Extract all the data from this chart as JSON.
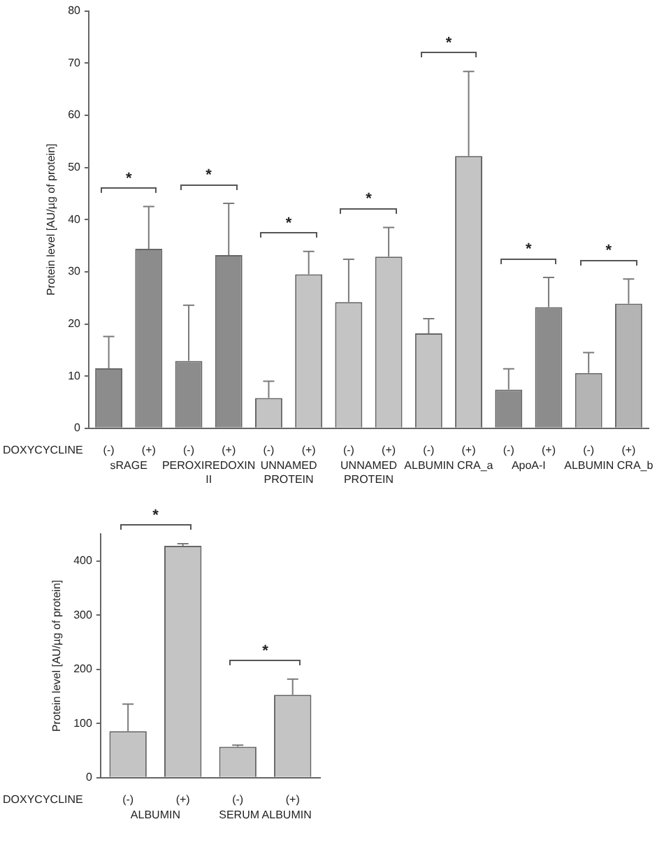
{
  "chart_data": [
    {
      "type": "bar",
      "ylabel": "Protein level [AU/µg of protein]",
      "xlabel": "DOXYCYCLINE",
      "categories": [
        "(-)",
        "(+)",
        "(-)",
        "(+)",
        "(-)",
        "(+)",
        "(-)",
        "(+)",
        "(-)",
        "(+)",
        "(-)",
        "(+)",
        "(-)",
        "(+)"
      ],
      "values": [
        11.5,
        34.4,
        12.9,
        33.2,
        5.8,
        29.5,
        24.2,
        32.9,
        18.2,
        52.2,
        7.4,
        23.2,
        10.6,
        23.9
      ],
      "colors": [
        "#8c8c8c",
        "#8c8c8c",
        "#8c8c8c",
        "#8c8c8c",
        "#c4c4c4",
        "#c4c4c4",
        "#c4c4c4",
        "#c4c4c4",
        "#c4c4c4",
        "#c4c4c4",
        "#8c8c8c",
        "#8c8c8c",
        "#b4b4b4",
        "#b4b4b4"
      ],
      "errors": [
        [
          11.5,
          17.6
        ],
        [
          34.4,
          42.5
        ],
        [
          12.9,
          23.6
        ],
        [
          33.2,
          43.1
        ],
        [
          5.8,
          9.0
        ],
        [
          29.5,
          33.9
        ],
        [
          24.2,
          32.4
        ],
        [
          32.9,
          38.5
        ],
        [
          18.2,
          21.0
        ],
        [
          52.2,
          68.4
        ],
        [
          7.4,
          11.4
        ],
        [
          23.2,
          28.9
        ],
        [
          10.6,
          14.5
        ],
        [
          23.9,
          28.6
        ]
      ],
      "ylim": [
        0,
        80
      ],
      "yticks": [
        0,
        10,
        20,
        30,
        40,
        50,
        60,
        70,
        80
      ],
      "grid": false,
      "annotations": [
        "sRAGE",
        "PEROXIREDOXIN II",
        "UNNAMED PROTEIN",
        "UNNAMED PROTEIN",
        "ALBUMIN CRA_a",
        "ApoA-I",
        "ALBUMIN CRA_b",
        "*",
        "*",
        "*",
        "*",
        "*",
        "*",
        "*"
      ]
    },
    {
      "type": "bar",
      "ylabel": "Protein level [AU/µg of protein]",
      "xlabel": "DOXYCYCLINE",
      "categories": [
        "(-)",
        "(+)",
        "(-)",
        "(+)"
      ],
      "values": [
        86,
        428,
        57,
        153
      ],
      "colors": [
        "#c4c4c4",
        "#c4c4c4",
        "#c4c4c4",
        "#c4c4c4"
      ],
      "errors": [
        [
          86,
          136
        ],
        [
          428,
          432
        ],
        [
          57,
          60
        ],
        [
          153,
          182
        ]
      ],
      "ylim": [
        0,
        450
      ],
      "yticks": [
        0,
        100,
        200,
        300,
        400
      ],
      "grid": false,
      "annotations": [
        "ALBUMIN",
        "SERUM ALBUMIN",
        "*",
        "*"
      ]
    }
  ]
}
